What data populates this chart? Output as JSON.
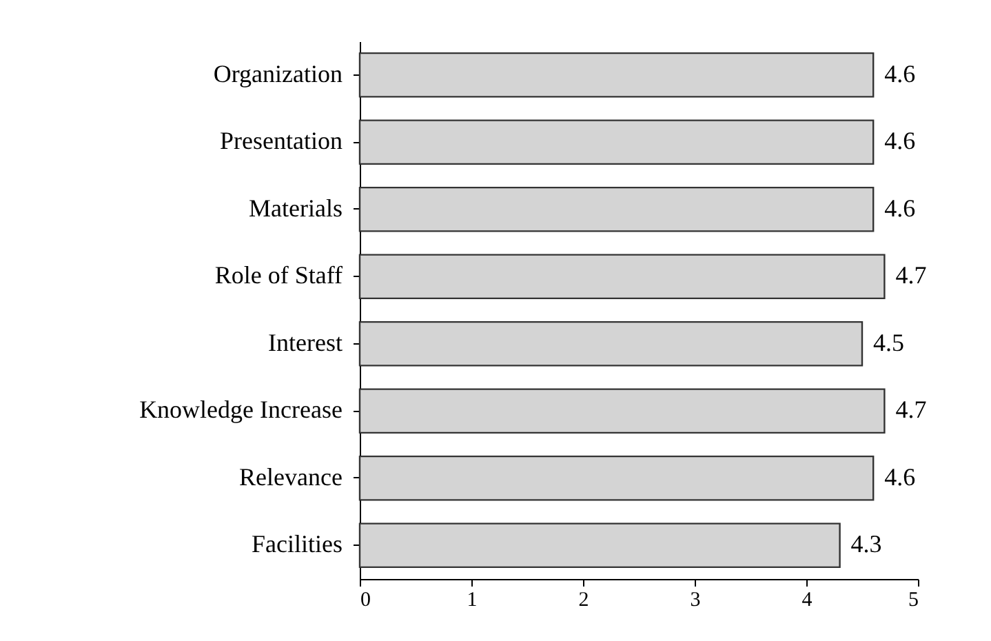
{
  "chart_data": {
    "type": "bar",
    "orientation": "horizontal",
    "categories": [
      "Organization",
      "Presentation",
      "Materials",
      "Role of Staff",
      "Interest",
      "Knowledge Increase",
      "Relevance",
      "Facilities"
    ],
    "values": [
      4.6,
      4.6,
      4.6,
      4.7,
      4.5,
      4.7,
      4.6,
      4.3
    ],
    "color": "#d4d4d4",
    "xlim": [
      0,
      5
    ],
    "xticks": [
      0,
      1,
      2,
      3,
      4,
      5
    ],
    "data_labels": true,
    "grid": false
  }
}
